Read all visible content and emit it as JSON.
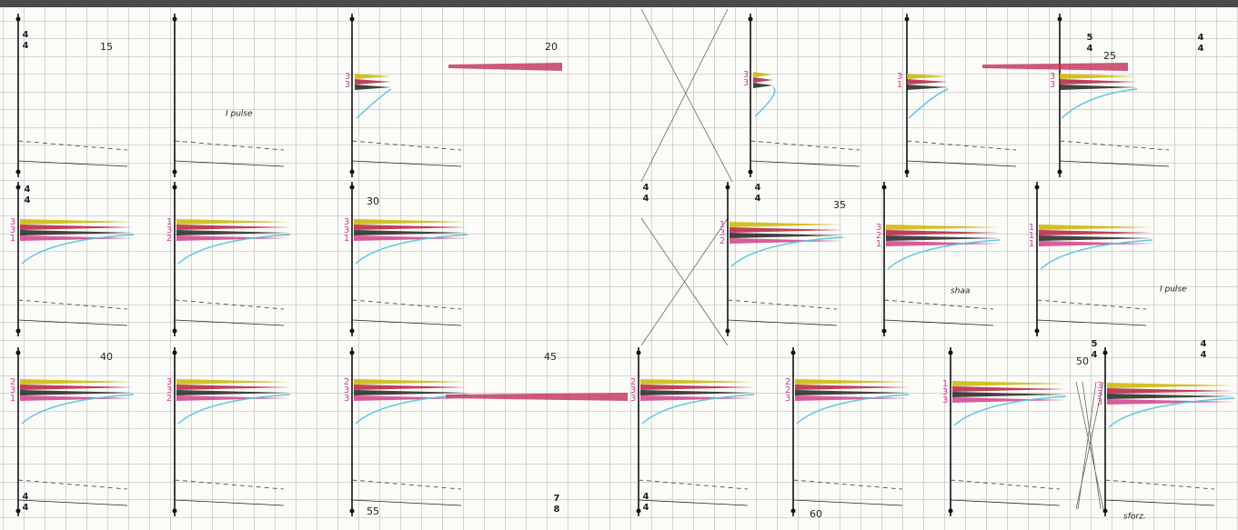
{
  "score": {
    "measure_numbers": [
      "15",
      "20",
      "25",
      "30",
      "35",
      "40",
      "45",
      "50",
      "55",
      "60"
    ],
    "time_signatures": [
      {
        "top": "4",
        "bottom": "4"
      },
      {
        "top": "5",
        "bottom": "4"
      },
      {
        "top": "4",
        "bottom": "4"
      },
      {
        "top": "4",
        "bottom": "4"
      },
      {
        "top": "4",
        "bottom": "4"
      },
      {
        "top": "4",
        "bottom": "4"
      },
      {
        "top": "5",
        "bottom": "4"
      },
      {
        "top": "4",
        "bottom": "4"
      },
      {
        "top": "4",
        "bottom": "4"
      },
      {
        "top": "7",
        "bottom": "8"
      },
      {
        "top": "4",
        "bottom": "4"
      }
    ],
    "clusters": [
      {
        "labels": [
          "3",
          "3"
        ]
      },
      {
        "labels": [
          "3",
          "3"
        ]
      },
      {
        "labels": [
          "3",
          "1"
        ]
      },
      {
        "labels": [
          "3",
          "3"
        ]
      },
      {
        "labels": [
          "3",
          "3",
          "1"
        ]
      },
      {
        "labels": [
          "1",
          "3",
          "2"
        ]
      },
      {
        "labels": [
          "3",
          "3",
          "1"
        ]
      },
      {
        "labels": [
          "1",
          "3",
          "2"
        ]
      },
      {
        "labels": [
          "3",
          "2",
          "1"
        ]
      },
      {
        "labels": [
          "1",
          "1",
          "1"
        ]
      },
      {
        "labels": [
          "2",
          "3",
          "1"
        ]
      },
      {
        "labels": [
          "3",
          "3",
          "2"
        ]
      },
      {
        "labels": [
          "2",
          "3",
          "3"
        ]
      },
      {
        "labels": [
          "2",
          "3",
          "3"
        ]
      },
      {
        "labels": [
          "2",
          "2",
          "3"
        ]
      },
      {
        "labels": [
          "1",
          "3",
          "3"
        ]
      },
      {
        "labels": [
          "3",
          "3",
          "3"
        ]
      }
    ],
    "annotations": [
      "I pulse",
      "shaa",
      "I pulse",
      "sforz."
    ]
  }
}
